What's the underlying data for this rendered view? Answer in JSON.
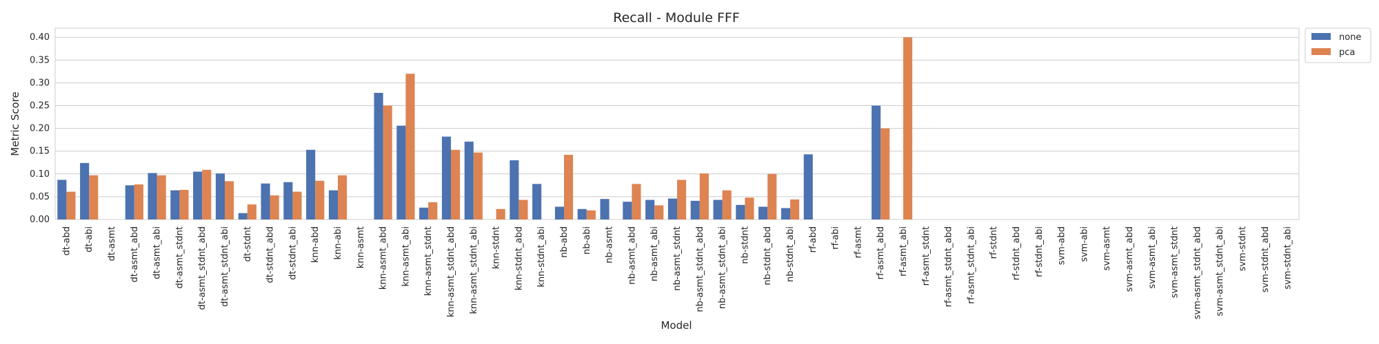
{
  "chart_data": {
    "type": "bar",
    "title": "Recall - Module FFF",
    "xlabel": "Model",
    "ylabel": "Metric Score",
    "ylim": [
      0,
      0.42
    ],
    "yticks": [
      0.0,
      0.05,
      0.1,
      0.15,
      0.2,
      0.25,
      0.3,
      0.35,
      0.4
    ],
    "ytick_labels": [
      "0.00",
      "0.05",
      "0.10",
      "0.15",
      "0.20",
      "0.25",
      "0.30",
      "0.35",
      "0.40"
    ],
    "grid": true,
    "legend_position": "outside top-right",
    "categories": [
      "dt-abd",
      "dt-abi",
      "dt-asmt",
      "dt-asmt_abd",
      "dt-asmt_abi",
      "dt-asmt_stdnt",
      "dt-asmt_stdnt_abd",
      "dt-asmt_stdnt_abi",
      "dt-stdnt",
      "dt-stdnt_abd",
      "dt-stdnt_abi",
      "knn-abd",
      "knn-abi",
      "knn-asmt",
      "knn-asmt_abd",
      "knn-asmt_abi",
      "knn-asmt_stdnt",
      "knn-asmt_stdnt_abd",
      "knn-asmt_stdnt_abi",
      "knn-stdnt",
      "knn-stdnt_abd",
      "knn-stdnt_abi",
      "nb-abd",
      "nb-abi",
      "nb-asmt",
      "nb-asmt_abd",
      "nb-asmt_abi",
      "nb-asmt_stdnt",
      "nb-asmt_stdnt_abd",
      "nb-asmt_stdnt_abi",
      "nb-stdnt",
      "nb-stdnt_abd",
      "nb-stdnt_abi",
      "rf-abd",
      "rf-abi",
      "rf-asmt",
      "rf-asmt_abd",
      "rf-asmt_abi",
      "rf-asmt_stdnt",
      "rf-asmt_stdnt_abd",
      "rf-asmt_stdnt_abi",
      "rf-stdnt",
      "rf-stdnt_abd",
      "rf-stdnt_abi",
      "svm-abd",
      "svm-abi",
      "svm-asmt",
      "svm-asmt_abd",
      "svm-asmt_abi",
      "svm-asmt_stdnt",
      "svm-asmt_stdnt_abd",
      "svm-asmt_stdnt_abi",
      "svm-stdnt",
      "svm-stdnt_abd",
      "svm-stdnt_abi"
    ],
    "series": [
      {
        "name": "none",
        "color": "#4c72b0",
        "values": [
          0.087,
          0.124,
          0.0,
          0.075,
          0.102,
          0.064,
          0.105,
          0.101,
          0.014,
          0.079,
          0.082,
          0.153,
          0.064,
          0.0,
          0.278,
          0.206,
          0.026,
          0.182,
          0.171,
          0.0,
          0.13,
          0.078,
          0.028,
          0.023,
          0.045,
          0.039,
          0.043,
          0.046,
          0.041,
          0.043,
          0.032,
          0.028,
          0.025,
          0.143,
          0.0,
          0.0,
          0.25,
          0.0,
          0.0,
          0.0,
          0.0,
          0.0,
          0.0,
          0.0,
          0.0,
          0.0,
          0.0,
          0.0,
          0.0,
          0.0,
          0.0,
          0.0,
          0.0,
          0.0,
          0.0
        ]
      },
      {
        "name": "pca",
        "color": "#dd8452",
        "values": [
          0.061,
          0.097,
          0.0,
          0.077,
          0.097,
          0.065,
          0.109,
          0.084,
          0.033,
          0.053,
          0.061,
          0.085,
          0.097,
          0.0,
          0.25,
          0.32,
          0.038,
          0.153,
          0.147,
          0.023,
          0.043,
          0.0,
          0.142,
          0.02,
          0.0,
          0.078,
          0.031,
          0.087,
          0.101,
          0.064,
          0.048,
          0.1,
          0.044,
          0.0,
          0.0,
          0.0,
          0.2,
          0.4,
          0.0,
          0.0,
          0.0,
          0.0,
          0.0,
          0.0,
          0.0,
          0.0,
          0.0,
          0.0,
          0.0,
          0.0,
          0.0,
          0.0,
          0.0,
          0.0,
          0.0
        ]
      }
    ]
  }
}
